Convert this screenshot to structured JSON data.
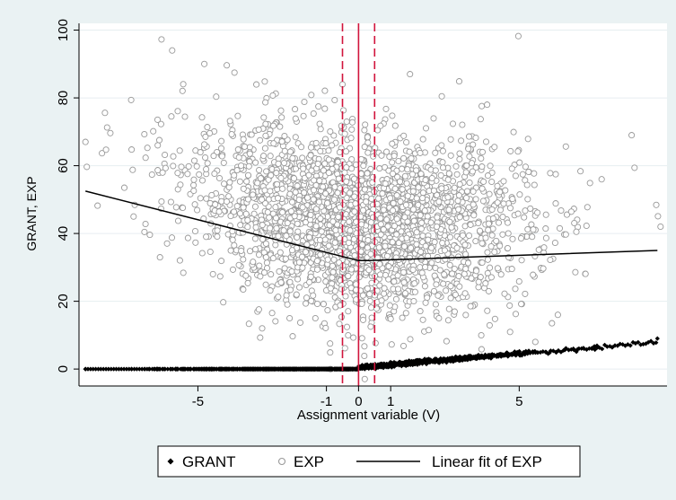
{
  "chart_data": {
    "type": "scatter",
    "title": "",
    "xlabel": "Assignment variable (V)",
    "ylabel": "GRANT, EXP",
    "xlim": [
      -8.7,
      9.6
    ],
    "ylim": [
      -5,
      102
    ],
    "x_ticks": [
      -5,
      -1,
      0,
      1,
      5
    ],
    "x_tick_labels": [
      "-5",
      "-1",
      "0",
      "1",
      "5"
    ],
    "y_ticks": [
      0,
      20,
      40,
      60,
      80,
      100
    ],
    "y_tick_labels": [
      "0",
      "20",
      "40",
      "60",
      "80",
      "100"
    ],
    "grid": "horizontal",
    "legend_position": "bottom",
    "cutoff_line": {
      "x": 0,
      "color": "#d1143c",
      "style": "solid"
    },
    "bandwidth_lines": {
      "x": [
        -0.5,
        0.5
      ],
      "color": "#d1143c",
      "style": "dashed"
    },
    "series": [
      {
        "name": "GRANT",
        "marker": "filled-diamond",
        "color": "#000000",
        "description_points": [
          {
            "x": -8.5,
            "y": 0
          },
          {
            "x": -5,
            "y": 0
          },
          {
            "x": -1,
            "y": 0
          },
          {
            "x": 0,
            "y": 0
          },
          {
            "x": 1,
            "y": 1.6
          },
          {
            "x": 3,
            "y": 3.2
          },
          {
            "x": 5,
            "y": 4.6
          },
          {
            "x": 7,
            "y": 6.2
          },
          {
            "x": 9.3,
            "y": 9
          }
        ]
      },
      {
        "name": "EXP",
        "marker": "hollow-circle",
        "color": "#999999",
        "description_points": [
          {
            "x": -8.5,
            "y": 67
          },
          {
            "x": -7,
            "y": 45
          },
          {
            "x": -5.8,
            "y": 94
          },
          {
            "x": -4.8,
            "y": 90
          },
          {
            "x": -3,
            "y": 12
          },
          {
            "x": -0.5,
            "y": 84
          },
          {
            "x": 1.6,
            "y": 87
          },
          {
            "x": 2.5,
            "y": 15
          },
          {
            "x": 4,
            "y": 78
          },
          {
            "x": 5.5,
            "y": 8
          },
          {
            "x": 8.5,
            "y": 69
          },
          {
            "x": 9.4,
            "y": 42
          }
        ]
      },
      {
        "name": "Linear fit of EXP",
        "marker": "line",
        "color": "#000000",
        "x": [
          -8.5,
          0,
          0.3,
          9.3
        ],
        "y": [
          52.5,
          32,
          32,
          35
        ]
      }
    ]
  }
}
